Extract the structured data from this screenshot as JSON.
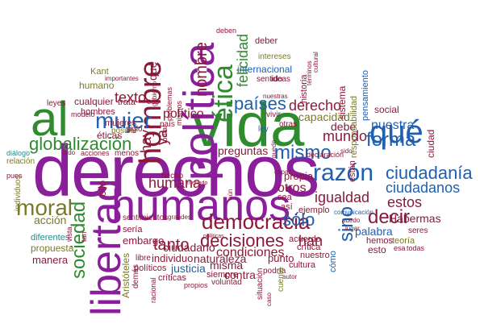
{
  "palette": {
    "purple": "#8b1e9a",
    "green": "#2e8b2e",
    "blue": "#1f5fb0",
    "maroon": "#8b1a3a",
    "olive": "#7a7a2a",
    "teal": "#2a8a8a",
    "grey": "#555555"
  },
  "words": [
    {
      "text": "derechos",
      "color": "purple"
    },
    {
      "text": "vida",
      "color": "green"
    },
    {
      "text": "humanos",
      "color": "purple"
    },
    {
      "text": "política",
      "color": "purple"
    },
    {
      "text": "libertad",
      "color": "purple"
    },
    {
      "text": "al",
      "color": "green"
    },
    {
      "text": "hombre",
      "color": "maroon"
    },
    {
      "text": "ética",
      "color": "green"
    },
    {
      "text": "democracia",
      "color": "maroon"
    },
    {
      "text": "moral",
      "color": "olive"
    },
    {
      "text": "razón",
      "color": "blue"
    },
    {
      "text": "qué",
      "color": "blue"
    },
    {
      "text": "decisiones",
      "color": "maroon"
    },
    {
      "text": "ciudadanía",
      "color": "blue"
    },
    {
      "text": "globalización",
      "color": "green"
    },
    {
      "text": "mujer",
      "color": "blue"
    },
    {
      "text": "mismo",
      "color": "blue"
    },
    {
      "text": "forma",
      "color": "blue"
    },
    {
      "text": "decir",
      "color": "maroon"
    },
    {
      "text": "sociedad",
      "color": "green"
    },
    {
      "text": "países",
      "color": "blue"
    },
    {
      "text": "sólo",
      "color": "blue"
    },
    {
      "text": "ciudadanos",
      "color": "blue"
    },
    {
      "text": "sino",
      "color": "blue"
    },
    {
      "text": "igualdad",
      "color": "maroon"
    },
    {
      "text": "derecho",
      "color": "maroon"
    },
    {
      "text": "tanto",
      "color": "maroon"
    },
    {
      "text": "han",
      "color": "maroon"
    },
    {
      "text": "felicidad",
      "color": "green"
    },
    {
      "text": "nombre",
      "color": "maroon"
    },
    {
      "text": "mundo",
      "color": "maroon"
    },
    {
      "text": "nuestra",
      "color": "blue"
    },
    {
      "text": "estos",
      "color": "maroon"
    },
    {
      "text": "palabra",
      "color": "blue"
    },
    {
      "text": "texto",
      "color": "maroon"
    },
    {
      "text": "humana",
      "color": "maroon"
    },
    {
      "text": "condiciones",
      "color": "maroon"
    },
    {
      "text": "capacidad",
      "color": "olive"
    },
    {
      "text": "debe",
      "color": "maroon"
    },
    {
      "text": "otros",
      "color": "maroon"
    },
    {
      "text": "hay",
      "color": "maroon"
    },
    {
      "text": "ya",
      "color": "maroon"
    },
    {
      "text": "ciudadano",
      "color": "maroon"
    },
    {
      "text": "preguntas",
      "color": "maroon"
    },
    {
      "text": "embargo",
      "color": "maroon"
    },
    {
      "text": "ello",
      "color": "maroon"
    },
    {
      "text": "acción",
      "color": "olive"
    },
    {
      "text": "político",
      "color": "maroon"
    },
    {
      "text": "Habermas",
      "color": "maroon"
    },
    {
      "text": "naturaleza",
      "color": "maroon"
    },
    {
      "text": "contra",
      "color": "maroon"
    },
    {
      "text": "misma",
      "color": "maroon"
    },
    {
      "text": "justicia",
      "color": "blue"
    },
    {
      "text": "individuo",
      "color": "maroon"
    },
    {
      "text": "punto",
      "color": "maroon"
    },
    {
      "text": "Kant",
      "color": "olive"
    },
    {
      "text": "humano",
      "color": "olive"
    },
    {
      "text": "qué",
      "color": "maroon"
    },
    {
      "text": "cualquier",
      "color": "maroon"
    },
    {
      "text": "trata",
      "color": "maroon"
    },
    {
      "text": "hombres",
      "color": "maroon"
    },
    {
      "text": "éticas",
      "color": "maroon"
    },
    {
      "text": "posible",
      "color": "olive"
    },
    {
      "text": "mujeres",
      "color": "maroon"
    },
    {
      "text": "leyes",
      "color": "maroon"
    },
    {
      "text": "manera",
      "color": "maroon"
    },
    {
      "text": "propuesta",
      "color": "olive"
    },
    {
      "text": "diferentes",
      "color": "teal"
    },
    {
      "text": "relación",
      "color": "olive"
    },
    {
      "text": "sentido",
      "color": "maroon"
    },
    {
      "text": "ideas",
      "color": "maroon"
    },
    {
      "text": "internacional",
      "color": "blue"
    },
    {
      "text": "intereses",
      "color": "olive"
    },
    {
      "text": "deber",
      "color": "maroon"
    },
    {
      "text": "deben",
      "color": "maroon"
    },
    {
      "text": "sistema",
      "color": "maroon"
    },
    {
      "text": "historia",
      "color": "maroon"
    },
    {
      "text": "social",
      "color": "maroon"
    },
    {
      "text": "responsabilidad",
      "color": "olive"
    },
    {
      "text": "pensamiento",
      "color": "blue"
    },
    {
      "text": "ciudad",
      "color": "maroon"
    },
    {
      "text": "están",
      "color": "maroon"
    },
    {
      "text": "propia",
      "color": "maroon"
    },
    {
      "text": "sea",
      "color": "maroon"
    },
    {
      "text": "así",
      "color": "maroon"
    },
    {
      "text": "ejemplo",
      "color": "maroon"
    },
    {
      "text": "hemos",
      "color": "maroon"
    },
    {
      "text": "teoría",
      "color": "olive"
    },
    {
      "text": "esto",
      "color": "maroon"
    },
    {
      "text": "todas",
      "color": "maroon"
    },
    {
      "text": "esa",
      "color": "maroon"
    },
    {
      "text": "seres",
      "color": "maroon"
    },
    {
      "text": "crítica",
      "color": "maroon"
    },
    {
      "text": "acuerdo",
      "color": "maroon"
    },
    {
      "text": "nuestro",
      "color": "maroon"
    },
    {
      "text": "cultura",
      "color": "maroon"
    },
    {
      "text": "cómo",
      "color": "blue"
    },
    {
      "text": "podría",
      "color": "maroon"
    },
    {
      "text": "cuenta",
      "color": "olive"
    },
    {
      "text": "autor",
      "color": "maroon"
    },
    {
      "text": "situación",
      "color": "maroon"
    },
    {
      "text": "siempre",
      "color": "maroon"
    },
    {
      "text": "voluntad",
      "color": "maroon"
    },
    {
      "text": "propios",
      "color": "maroon"
    },
    {
      "text": "críticas",
      "color": "maroon"
    },
    {
      "text": "racional",
      "color": "maroon"
    },
    {
      "text": "políticos",
      "color": "maroon"
    },
    {
      "text": "libre",
      "color": "maroon"
    },
    {
      "text": "Aristóteles",
      "color": "olive"
    },
    {
      "text": "demás",
      "color": "maroon"
    },
    {
      "text": "sentimientos",
      "color": "maroon"
    },
    {
      "text": "grandes",
      "color": "maroon"
    },
    {
      "text": "sería",
      "color": "maroon"
    },
    {
      "text": "hecho",
      "color": "maroon"
    },
    {
      "text": "aún",
      "color": "maroon"
    },
    {
      "text": "pues",
      "color": "maroon"
    },
    {
      "text": "individuos",
      "color": "olive"
    },
    {
      "text": "diálogo",
      "color": "teal"
    },
    {
      "text": "lado",
      "color": "maroon"
    },
    {
      "text": "acciones",
      "color": "maroon"
    },
    {
      "text": "menos",
      "color": "maroon"
    },
    {
      "text": "siglo",
      "color": "maroon"
    },
    {
      "text": "modelo",
      "color": "maroon"
    },
    {
      "text": "importantes",
      "color": "maroon"
    },
    {
      "text": "país",
      "color": "maroon"
    },
    {
      "text": "vivir",
      "color": "maroon"
    },
    {
      "text": "otras",
      "color": "maroon"
    },
    {
      "text": "ley",
      "color": "blue"
    },
    {
      "text": "problemas",
      "color": "maroon"
    },
    {
      "text": "mismos",
      "color": "maroon"
    },
    {
      "text": "tomar",
      "color": "maroon"
    },
    {
      "text": "gobierno",
      "color": "maroon"
    },
    {
      "text": "nuestras",
      "color": "maroon"
    },
    {
      "text": "declaración",
      "color": "maroon"
    },
    {
      "text": "comunicación",
      "color": "blue"
    },
    {
      "text": "sido",
      "color": "maroon"
    },
    {
      "text": "puede",
      "color": "maroon"
    },
    {
      "text": "puedo",
      "color": "maroon"
    },
    {
      "text": "lugar",
      "color": "maroon"
    },
    {
      "text": "capaz",
      "color": "maroon"
    },
    {
      "text": "esc",
      "color": "maroon"
    },
    {
      "text": "tan",
      "color": "maroon"
    },
    {
      "text": "vista",
      "color": "maroon"
    },
    {
      "text": "términos",
      "color": "maroon"
    },
    {
      "text": "cultural",
      "color": "maroon"
    },
    {
      "text": "menudo",
      "color": "maroon"
    },
    {
      "text": "políticas",
      "color": "maroon"
    },
    {
      "text": "caso",
      "color": "maroon"
    },
    {
      "text": "sociedades",
      "color": "maroon"
    }
  ]
}
